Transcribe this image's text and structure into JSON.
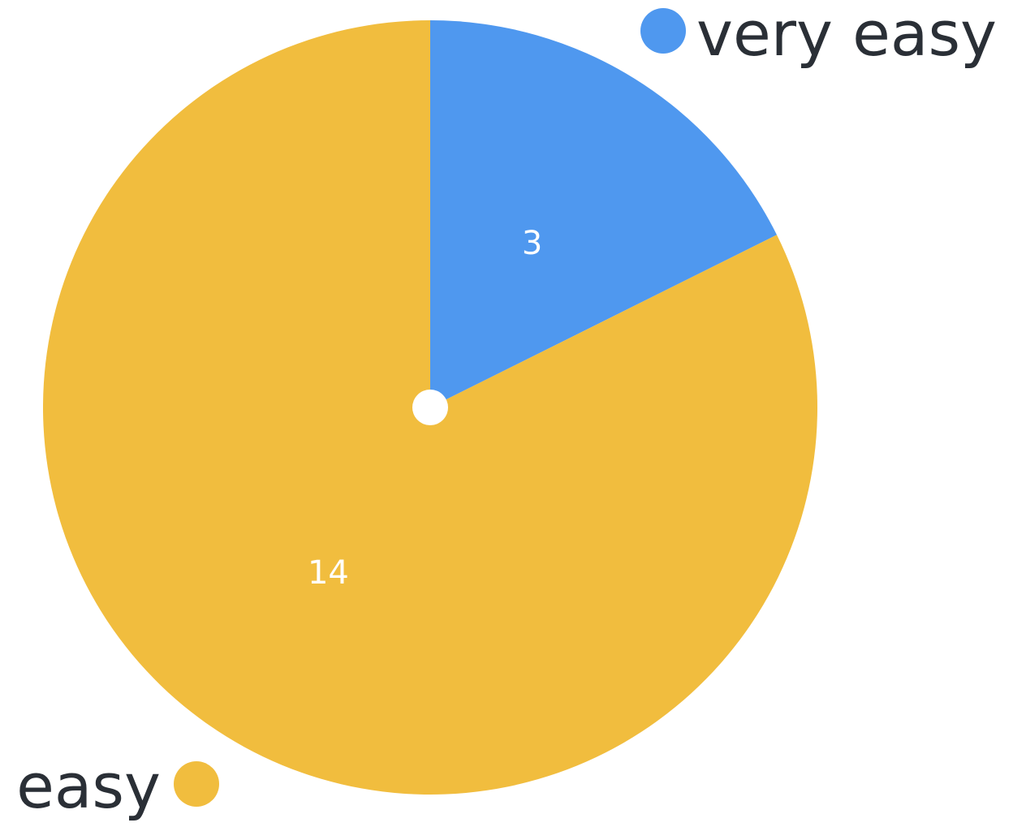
{
  "chart_data": {
    "type": "pie",
    "start_angle_deg": 0,
    "direction": "clockwise",
    "inner_dot": true,
    "slices": [
      {
        "label": "very easy",
        "value": 3,
        "color": "#4f98ef"
      },
      {
        "label": "easy",
        "value": 14,
        "color": "#f1bd3e"
      }
    ],
    "legend_placement": "callouts-outside"
  },
  "theme": {
    "background": "#ffffff",
    "text_color": "#2a2f36",
    "value_text_color": "#ffffff",
    "center_dot_color": "#ffffff"
  }
}
